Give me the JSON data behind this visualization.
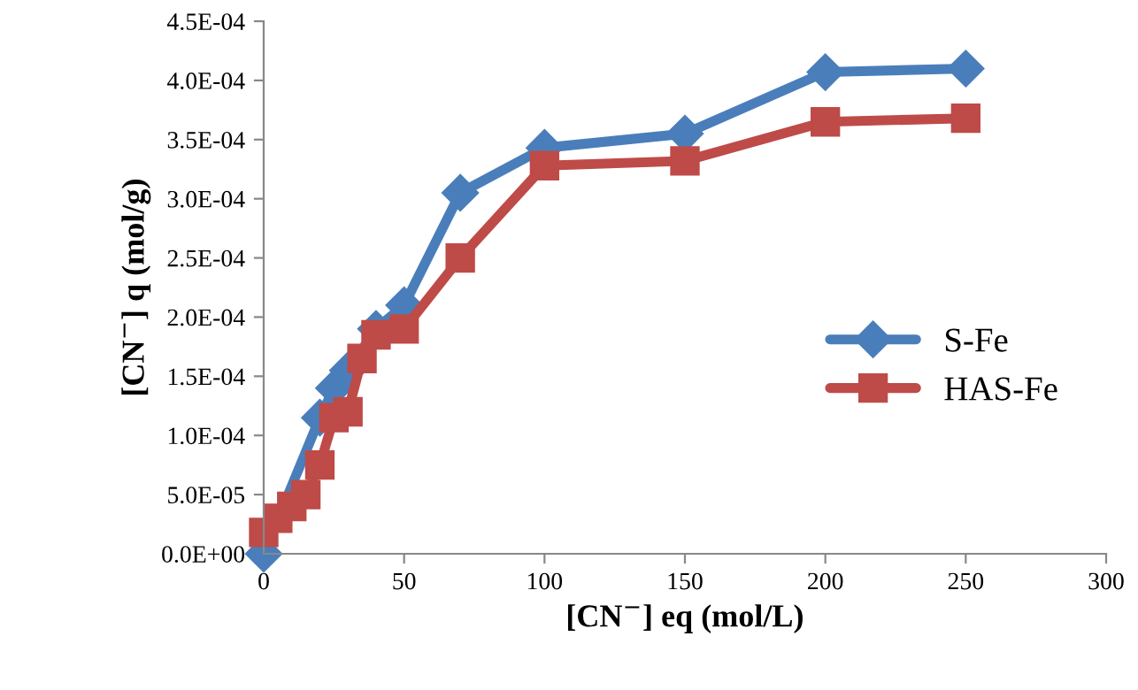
{
  "chart_data": {
    "type": "line",
    "xlabel": "[CN$^{−}$] eq (mol/L)",
    "ylabel": "[CN$^{−}$] q (mol/g)",
    "series": [
      {
        "name": "S-Fe",
        "color": "#4a7ebb",
        "marker": "diamond",
        "x": [
          0,
          5,
          10,
          15,
          20,
          25,
          30,
          40,
          50,
          70,
          100,
          150,
          200,
          250
        ],
        "values": [
          0,
          null,
          null,
          null,
          0.000115,
          0.00014,
          0.000155,
          0.00019,
          0.00021,
          0.000305,
          0.000343,
          0.000355,
          0.000407,
          0.00041
        ]
      },
      {
        "name": "HAS-Fe",
        "color": "#be4b48",
        "marker": "square",
        "x": [
          0,
          5,
          10,
          15,
          20,
          25,
          30,
          35,
          40,
          50,
          70,
          100,
          150,
          200,
          250
        ],
        "values": [
          1.8e-05,
          3e-05,
          4e-05,
          5e-05,
          7.5e-05,
          0.000115,
          0.00012,
          0.000165,
          0.000185,
          0.00019,
          0.00025,
          0.000328,
          0.000332,
          0.000365,
          0.000368
        ]
      }
    ],
    "xlim": [
      0,
      300
    ],
    "xticks": [
      0,
      50,
      100,
      150,
      200,
      250,
      300
    ],
    "ylim": [
      0,
      0.00045
    ],
    "yticks": [
      {
        "value": 0,
        "label": "0.0E+00"
      },
      {
        "value": 5e-05,
        "label": "5.0E-05"
      },
      {
        "value": 0.0001,
        "label": "1.0E-04"
      },
      {
        "value": 0.00015,
        "label": "1.5E-04"
      },
      {
        "value": 0.0002,
        "label": "2.0E-04"
      },
      {
        "value": 0.00025,
        "label": "2.5E-04"
      },
      {
        "value": 0.0003,
        "label": "3.0E-04"
      },
      {
        "value": 0.00035,
        "label": "3.5E-04"
      },
      {
        "value": 0.0004,
        "label": "4.0E-04"
      },
      {
        "value": 0.00045,
        "label": "4.5E-04"
      }
    ],
    "grid": false,
    "legend": "right",
    "line_style": "solid"
  }
}
